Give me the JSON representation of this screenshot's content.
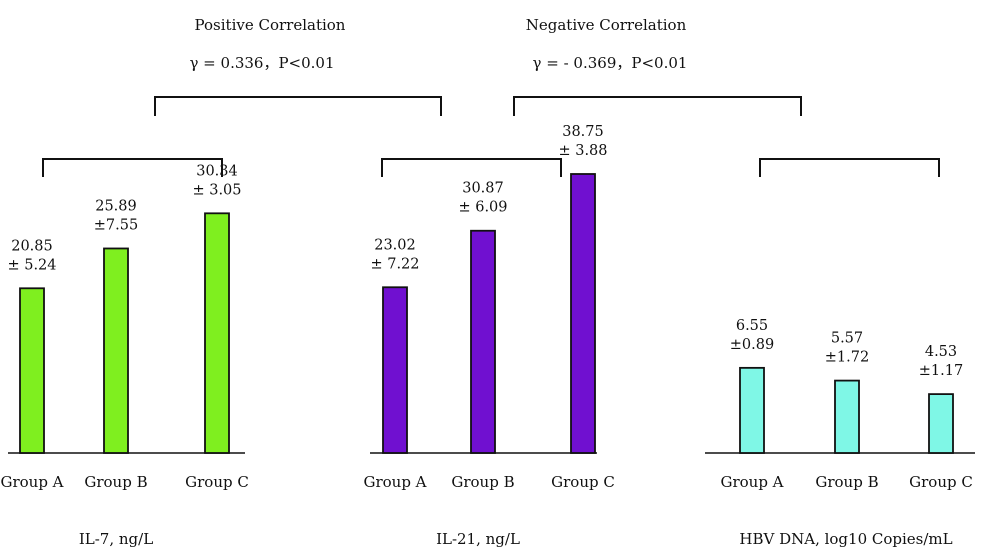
{
  "chart_data": [
    {
      "type": "bar",
      "xlabel": "IL-7, ng/L",
      "categories": [
        "Group A",
        "Group B",
        "Group C"
      ],
      "values": [
        20.85,
        25.89,
        30.34
      ],
      "errors": [
        5.24,
        7.55,
        3.05
      ],
      "labels": [
        [
          "20.85",
          "± 5.24"
        ],
        [
          "25.89",
          "±7.55"
        ],
        [
          "30.34",
          "± 3.05"
        ]
      ],
      "color": "#7FEF1F",
      "ylim": [
        0,
        40
      ]
    },
    {
      "type": "bar",
      "xlabel": "IL-21, ng/L",
      "categories": [
        "Group A",
        "Group B",
        "Group C"
      ],
      "values": [
        23.02,
        30.87,
        38.75
      ],
      "errors": [
        7.22,
        6.09,
        3.88
      ],
      "labels": [
        [
          "23.02",
          "± 7.22"
        ],
        [
          "30.87",
          "± 6.09"
        ],
        [
          "38.75",
          "± 3.88"
        ]
      ],
      "color": "#7010D0",
      "ylim": [
        0,
        40
      ]
    },
    {
      "type": "bar",
      "xlabel": "HBV DNA, log10 Copies/mL",
      "categories": [
        "Group A",
        "Group B",
        "Group C"
      ],
      "values": [
        6.55,
        5.57,
        4.53
      ],
      "errors": [
        0.89,
        1.72,
        1.17
      ],
      "labels": [
        [
          "6.55",
          "±0.89"
        ],
        [
          "5.57",
          "±1.72"
        ],
        [
          "4.53",
          "±1.17"
        ]
      ],
      "color": "#7FF7E6",
      "ylim": [
        0,
        16
      ]
    }
  ],
  "correlations": [
    {
      "title": "Positive Correlation",
      "stat": "γ = 0.336，P<0.01"
    },
    {
      "title": "Negative Correlation",
      "stat": "γ = - 0.369，P<0.01"
    }
  ]
}
